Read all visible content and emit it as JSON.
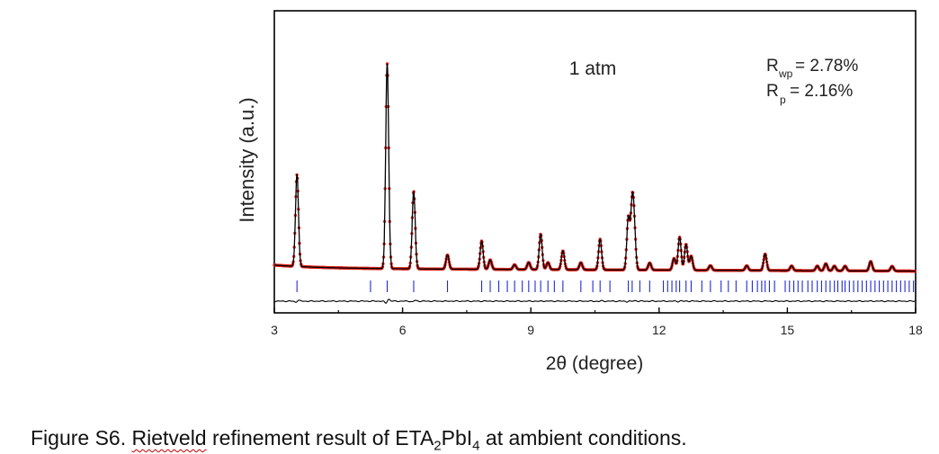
{
  "chart_data": {
    "type": "line",
    "xlabel": "2θ (degree)",
    "ylabel": "Intensity (a.u.)",
    "xlim": [
      3,
      18
    ],
    "xticks": [
      "3",
      "6",
      "9",
      "12",
      "15",
      "18"
    ],
    "annotation": "1 atm",
    "r_factors": [
      {
        "symbol": "R",
        "sub": "wp",
        "text": "= 2.78%"
      },
      {
        "symbol": "R",
        "sub": "p",
        "text": " = 2.16%"
      }
    ],
    "peaks": [
      {
        "x": 3.53,
        "y": 0.39
      },
      {
        "x": 5.64,
        "y": 0.87
      },
      {
        "x": 6.26,
        "y": 0.33
      },
      {
        "x": 7.05,
        "y": 0.06
      },
      {
        "x": 7.85,
        "y": 0.12
      },
      {
        "x": 8.05,
        "y": 0.04
      },
      {
        "x": 8.62,
        "y": 0.02
      },
      {
        "x": 8.95,
        "y": 0.03
      },
      {
        "x": 9.23,
        "y": 0.15
      },
      {
        "x": 9.4,
        "y": 0.03
      },
      {
        "x": 9.75,
        "y": 0.08
      },
      {
        "x": 10.17,
        "y": 0.03
      },
      {
        "x": 10.62,
        "y": 0.13
      },
      {
        "x": 11.28,
        "y": 0.22
      },
      {
        "x": 11.37,
        "y": 0.26
      },
      {
        "x": 11.42,
        "y": 0.15
      },
      {
        "x": 11.78,
        "y": 0.03
      },
      {
        "x": 12.35,
        "y": 0.05
      },
      {
        "x": 12.48,
        "y": 0.14
      },
      {
        "x": 12.63,
        "y": 0.11
      },
      {
        "x": 12.75,
        "y": 0.06
      },
      {
        "x": 13.2,
        "y": 0.02
      },
      {
        "x": 14.05,
        "y": 0.02
      },
      {
        "x": 14.48,
        "y": 0.07
      },
      {
        "x": 15.1,
        "y": 0.02
      },
      {
        "x": 15.7,
        "y": 0.02
      },
      {
        "x": 15.9,
        "y": 0.03
      },
      {
        "x": 16.1,
        "y": 0.02
      },
      {
        "x": 16.35,
        "y": 0.02
      },
      {
        "x": 16.95,
        "y": 0.04
      },
      {
        "x": 17.45,
        "y": 0.02
      }
    ],
    "reflections": [
      3.53,
      5.25,
      5.64,
      6.26,
      7.05,
      7.85,
      8.05,
      8.25,
      8.45,
      8.62,
      8.8,
      8.95,
      9.1,
      9.23,
      9.4,
      9.55,
      9.75,
      10.17,
      10.45,
      10.62,
      10.85,
      11.28,
      11.37,
      11.55,
      11.78,
      12.1,
      12.2,
      12.3,
      12.4,
      12.48,
      12.63,
      12.75,
      13.0,
      13.2,
      13.45,
      13.62,
      13.8,
      14.05,
      14.18,
      14.3,
      14.4,
      14.48,
      14.58,
      14.7,
      14.95,
      15.05,
      15.15,
      15.25,
      15.35,
      15.48,
      15.58,
      15.7,
      15.8,
      15.9,
      16.0,
      16.1,
      16.18,
      16.28,
      16.35,
      16.45,
      16.55,
      16.65,
      16.75,
      16.85,
      16.95,
      17.05,
      17.15,
      17.25,
      17.35,
      17.45,
      17.55,
      17.65,
      17.75,
      17.85,
      17.95
    ],
    "colors": {
      "observed": "#e0201a",
      "calculated": "#000000",
      "reflections": "#1f2bd6",
      "difference": "#000000"
    }
  },
  "caption": {
    "prefix": "Figure S6. ",
    "word": "Rietveld",
    "middle": " refinement result of ETA",
    "sub": "2",
    "suffix": "PbI",
    "sub2": "4",
    "end": " at ambient conditions."
  }
}
